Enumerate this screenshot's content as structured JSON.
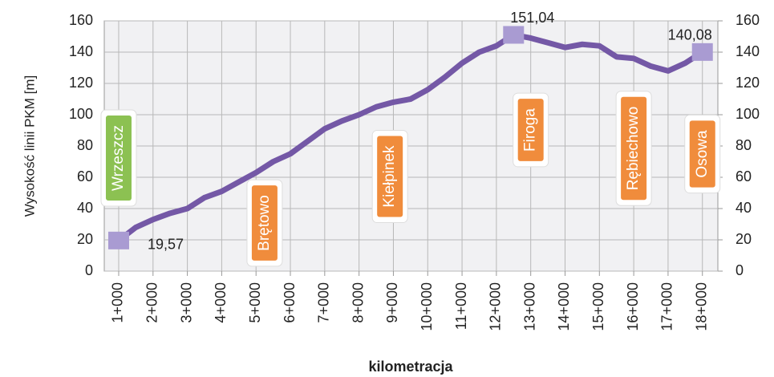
{
  "chart_data": {
    "type": "line",
    "ylabel": "Wysokość linii PKM [m]",
    "xlabel": "kilometracja",
    "x": [
      1,
      1.5,
      2,
      2.5,
      3,
      3.5,
      4,
      4.5,
      5,
      5.5,
      6,
      6.5,
      7,
      7.5,
      8,
      8.5,
      9,
      9.5,
      10,
      10.5,
      11,
      11.5,
      12,
      12.5,
      13,
      13.5,
      14,
      14.5,
      15,
      15.5,
      16,
      16.5,
      17,
      17.5,
      18
    ],
    "series": [
      {
        "color": "#7458a6",
        "marker_color": "#a99bd2",
        "values": [
          19.57,
          28,
          33,
          37,
          40,
          47,
          51,
          57,
          63,
          70,
          75,
          83,
          91,
          96,
          100,
          105,
          108,
          110,
          116,
          124,
          133,
          140,
          144,
          151.04,
          149,
          146,
          143,
          145,
          144,
          137,
          136,
          131,
          128,
          133,
          140.08
        ],
        "value_labels": [
          "19,57",
          null,
          null,
          null,
          null,
          null,
          null,
          null,
          null,
          null,
          null,
          null,
          null,
          null,
          null,
          null,
          null,
          null,
          null,
          null,
          null,
          null,
          null,
          "151,04",
          null,
          null,
          null,
          null,
          null,
          null,
          null,
          null,
          null,
          null,
          "140,08"
        ]
      }
    ],
    "xlim": [
      0.58,
      18.45
    ],
    "ylim": [
      0,
      160
    ],
    "y2lim": [
      0,
      160
    ],
    "xticks": [
      {
        "value": 1,
        "label": "1+000"
      },
      {
        "value": 2,
        "label": "2+000"
      },
      {
        "value": 3,
        "label": "3+000"
      },
      {
        "value": 4,
        "label": "4+000"
      },
      {
        "value": 5,
        "label": "5+000"
      },
      {
        "value": 6,
        "label": "6+000"
      },
      {
        "value": 7,
        "label": "7+000"
      },
      {
        "value": 8,
        "label": "8+000"
      },
      {
        "value": 9,
        "label": "9+000"
      },
      {
        "value": 10,
        "label": "10+000"
      },
      {
        "value": 11,
        "label": "11+000"
      },
      {
        "value": 12,
        "label": "12+000"
      },
      {
        "value": 13,
        "label": "13+000"
      },
      {
        "value": 14,
        "label": "14+000"
      },
      {
        "value": 15,
        "label": "15+000"
      },
      {
        "value": 16,
        "label": "16+000"
      },
      {
        "value": 17,
        "label": "17+000"
      },
      {
        "value": 18,
        "label": "18+000"
      }
    ],
    "yticks": [
      0,
      20,
      40,
      60,
      80,
      100,
      120,
      140,
      160
    ],
    "y2ticks": [
      0,
      20,
      40,
      60,
      80,
      100,
      120,
      140,
      160
    ],
    "grid": true,
    "stations": [
      {
        "name": "Wrzeszcz",
        "x": 1,
        "color": "#8cc152"
      },
      {
        "name": "Brętowo",
        "x": 5.25,
        "color": "#f08c3c"
      },
      {
        "name": "Kiełpinek",
        "x": 8.9,
        "color": "#f08c3c"
      },
      {
        "name": "Firoga",
        "x": 13,
        "color": "#f08c3c"
      },
      {
        "name": "Rębiechowo",
        "x": 16,
        "color": "#f08c3c"
      },
      {
        "name": "Osowa",
        "x": 18,
        "color": "#f08c3c"
      }
    ]
  }
}
